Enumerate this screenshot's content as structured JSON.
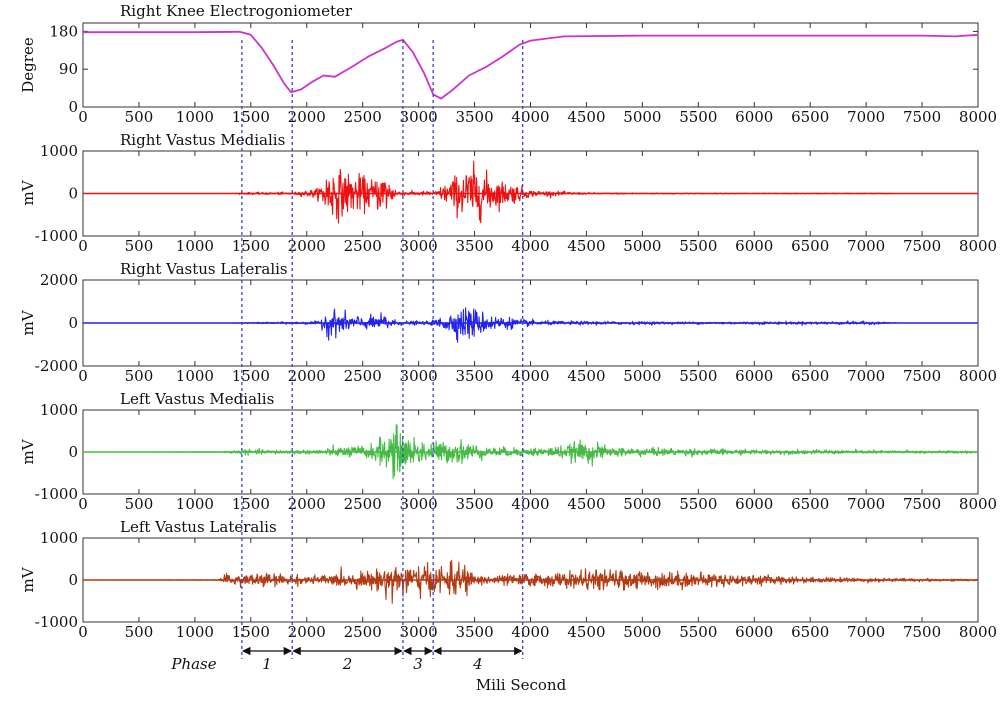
{
  "chart_data": [
    {
      "type": "line",
      "title": "Right Knee Electrogoniometer",
      "ylabel": "Degree",
      "xlim": [
        0,
        8000
      ],
      "ylim": [
        0,
        200
      ],
      "y_ticks": [
        0,
        90,
        180
      ],
      "color": "#cc33cc",
      "series": [
        {
          "x": [
            0,
            500,
            1000,
            1400,
            1500,
            1600,
            1700,
            1800,
            1860,
            1950,
            2050,
            2150,
            2250,
            2400,
            2550,
            2700,
            2800,
            2860,
            2950,
            3050,
            3130,
            3200,
            3300,
            3450,
            3600,
            3750,
            3900,
            4000,
            4300,
            5000,
            6000,
            7000,
            7500,
            7800,
            8000
          ],
          "y": [
            178,
            178,
            178,
            179,
            172,
            140,
            100,
            55,
            35,
            42,
            60,
            75,
            72,
            95,
            120,
            140,
            155,
            160,
            130,
            80,
            30,
            20,
            40,
            75,
            95,
            120,
            148,
            158,
            168,
            170,
            170,
            170,
            170,
            168,
            172
          ]
        }
      ]
    },
    {
      "type": "line",
      "title": "Right Vastus Medialis",
      "ylabel": "mV",
      "xlim": [
        0,
        8000
      ],
      "ylim": [
        -1000,
        1000
      ],
      "y_ticks": [
        -1000,
        0,
        1000
      ],
      "color": "#ee1111",
      "emg_profile": [
        [
          0,
          0
        ],
        [
          1300,
          0
        ],
        [
          1450,
          25
        ],
        [
          1900,
          35
        ],
        [
          2100,
          120
        ],
        [
          2200,
          650
        ],
        [
          2400,
          500
        ],
        [
          2600,
          350
        ],
        [
          2700,
          550
        ],
        [
          2780,
          150
        ],
        [
          2850,
          50
        ],
        [
          3150,
          60
        ],
        [
          3400,
          600
        ],
        [
          3500,
          700
        ],
        [
          3700,
          350
        ],
        [
          3900,
          200
        ],
        [
          4000,
          80
        ],
        [
          4500,
          20
        ],
        [
          6000,
          8
        ],
        [
          7200,
          12
        ],
        [
          7300,
          0
        ],
        [
          8000,
          0
        ]
      ]
    },
    {
      "type": "line",
      "title": "Right Vastus Lateralis",
      "ylabel": "mV",
      "xlim": [
        0,
        8000
      ],
      "ylim": [
        -2000,
        2000
      ],
      "y_ticks": [
        -2000,
        0,
        2000
      ],
      "color": "#2222ee",
      "emg_profile": [
        [
          0,
          0
        ],
        [
          1300,
          0
        ],
        [
          1500,
          30
        ],
        [
          2100,
          80
        ],
        [
          2200,
          700
        ],
        [
          2350,
          450
        ],
        [
          2550,
          280
        ],
        [
          2700,
          450
        ],
        [
          2800,
          120
        ],
        [
          3100,
          80
        ],
        [
          3450,
          900
        ],
        [
          3600,
          450
        ],
        [
          3900,
          200
        ],
        [
          4100,
          100
        ],
        [
          5500,
          60
        ],
        [
          7000,
          80
        ],
        [
          7200,
          40
        ],
        [
          7300,
          0
        ],
        [
          8000,
          0
        ]
      ]
    },
    {
      "type": "line",
      "title": "Left Vastus Medialis",
      "ylabel": "mV",
      "xlim": [
        0,
        8000
      ],
      "ylim": [
        -1000,
        1000
      ],
      "y_ticks": [
        -1000,
        0,
        1000
      ],
      "color": "#44bb44",
      "emg_profile": [
        [
          0,
          0
        ],
        [
          1200,
          10
        ],
        [
          1450,
          60
        ],
        [
          2000,
          50
        ],
        [
          2300,
          120
        ],
        [
          2600,
          200
        ],
        [
          2780,
          650
        ],
        [
          2900,
          380
        ],
        [
          3200,
          250
        ],
        [
          3400,
          300
        ],
        [
          3600,
          120
        ],
        [
          4000,
          100
        ],
        [
          4300,
          160
        ],
        [
          4500,
          300
        ],
        [
          4700,
          120
        ],
        [
          6000,
          60
        ],
        [
          8000,
          30
        ]
      ]
    },
    {
      "type": "line",
      "title": "Left Vastus Lateralis",
      "ylabel": "mV",
      "xlim": [
        0,
        8000
      ],
      "ylim": [
        -1000,
        1000
      ],
      "y_ticks": [
        -1000,
        0,
        1000
      ],
      "color": "#b33a12",
      "emg_profile": [
        [
          0,
          0
        ],
        [
          1200,
          10
        ],
        [
          1300,
          150
        ],
        [
          1600,
          180
        ],
        [
          2000,
          100
        ],
        [
          2600,
          220
        ],
        [
          2800,
          500
        ],
        [
          3000,
          350
        ],
        [
          3300,
          380
        ],
        [
          3400,
          450
        ],
        [
          3500,
          120
        ],
        [
          3800,
          140
        ],
        [
          4200,
          180
        ],
        [
          4600,
          250
        ],
        [
          5200,
          220
        ],
        [
          5800,
          150
        ],
        [
          6500,
          70
        ],
        [
          7500,
          40
        ],
        [
          8000,
          20
        ]
      ]
    }
  ],
  "x_ticks": [
    0,
    500,
    1000,
    1500,
    2000,
    2500,
    3000,
    3500,
    4000,
    4500,
    5000,
    5500,
    6000,
    6500,
    7000,
    7500,
    8000
  ],
  "xlabel": "Mili Second",
  "phase_lines_x": [
    1420,
    1870,
    2860,
    3130,
    3930
  ],
  "phase_label": "Phase",
  "phases": [
    {
      "label": "1",
      "start": 1420,
      "end": 1870
    },
    {
      "label": "2",
      "start": 1870,
      "end": 2860
    },
    {
      "label": "3",
      "start": 2860,
      "end": 3130
    },
    {
      "label": "4",
      "start": 3130,
      "end": 3930
    }
  ]
}
